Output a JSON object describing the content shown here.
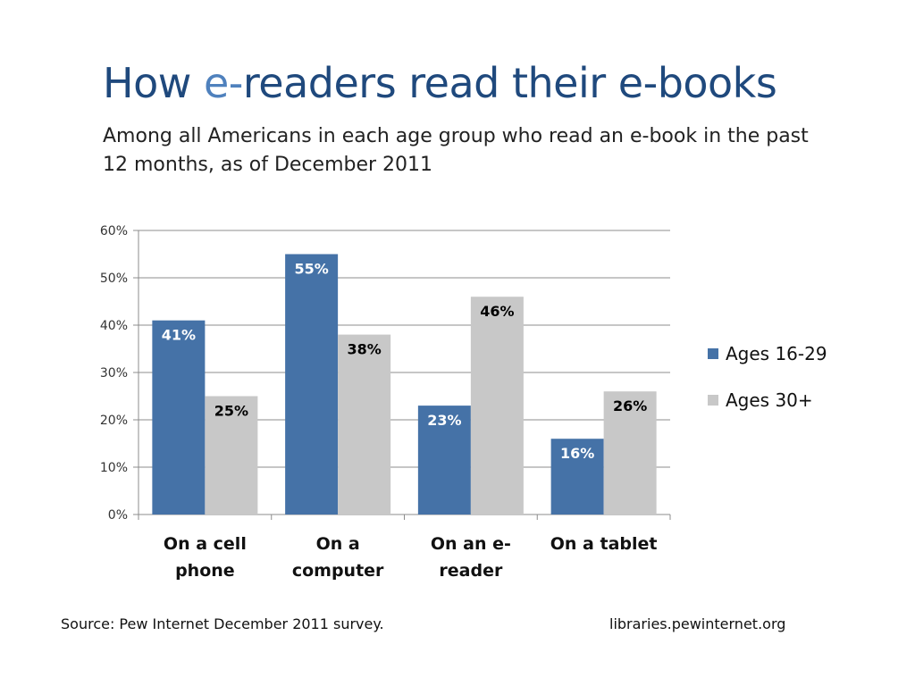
{
  "slide": {
    "title_before": "How ",
    "title_accent": "e-",
    "title_after": "readers read their e-books",
    "subtitle": "Among all Americans in each age group who read an e-book in the past 12 months, as of December 2011",
    "source": "Source: Pew Internet December 2011 survey.",
    "site": "libraries.pewinternet.org"
  },
  "colors": {
    "title": "#1F497D",
    "title_accent": "#4F81BD"
  },
  "chart_data": {
    "type": "bar",
    "categories": [
      [
        "On a cell",
        "phone"
      ],
      [
        "On a",
        "computer"
      ],
      [
        "On an e-",
        "reader"
      ],
      [
        "On a tablet"
      ]
    ],
    "series": [
      {
        "name": "Ages 16-29",
        "values": [
          41,
          55,
          23,
          16
        ],
        "labels": [
          "41%",
          "55%",
          "23%",
          "16%"
        ],
        "color": "#4572A7",
        "label_color": "#ffffff"
      },
      {
        "name": "Ages 30+",
        "values": [
          25,
          38,
          46,
          26
        ],
        "labels": [
          "25%",
          "38%",
          "46%",
          "26%"
        ],
        "color": "#C8C8C8",
        "label_color": "#000000"
      }
    ],
    "yticks": [
      "0%",
      "10%",
      "20%",
      "30%",
      "40%",
      "50%",
      "60%"
    ],
    "ylim": [
      0,
      60
    ],
    "grid": true,
    "legend": "right"
  }
}
